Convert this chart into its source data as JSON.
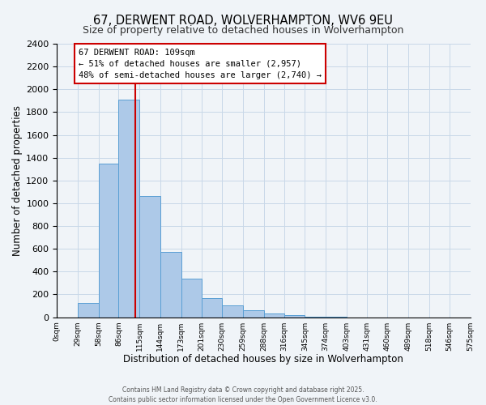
{
  "title": "67, DERWENT ROAD, WOLVERHAMPTON, WV6 9EU",
  "subtitle": "Size of property relative to detached houses in Wolverhampton",
  "xlabel": "Distribution of detached houses by size in Wolverhampton",
  "ylabel": "Number of detached properties",
  "bin_edges": [
    0,
    29,
    58,
    86,
    115,
    144,
    173,
    201,
    230,
    259,
    288,
    316,
    345,
    374,
    403,
    431,
    460,
    489,
    518,
    546,
    575
  ],
  "bar_heights": [
    0,
    125,
    1350,
    1910,
    1060,
    570,
    340,
    165,
    105,
    60,
    30,
    15,
    5,
    2,
    0,
    0,
    0,
    0,
    0,
    0
  ],
  "bar_color": "#adc9e8",
  "bar_edge_color": "#5a9fd4",
  "vline_x": 109,
  "vline_color": "#cc0000",
  "annotation_title": "67 DERWENT ROAD: 109sqm",
  "annotation_line1": "← 51% of detached houses are smaller (2,957)",
  "annotation_line2": "48% of semi-detached houses are larger (2,740) →",
  "annotation_box_color": "#ffffff",
  "annotation_box_edge": "#cc0000",
  "ylim": [
    0,
    2400
  ],
  "xlim": [
    0,
    575
  ],
  "tick_labels": [
    "0sqm",
    "29sqm",
    "58sqm",
    "86sqm",
    "115sqm",
    "144sqm",
    "173sqm",
    "201sqm",
    "230sqm",
    "259sqm",
    "288sqm",
    "316sqm",
    "345sqm",
    "374sqm",
    "403sqm",
    "431sqm",
    "460sqm",
    "489sqm",
    "518sqm",
    "546sqm",
    "575sqm"
  ],
  "footer1": "Contains HM Land Registry data © Crown copyright and database right 2025.",
  "footer2": "Contains public sector information licensed under the Open Government Licence v3.0.",
  "background_color": "#f0f4f8",
  "grid_color": "#c8d8e8"
}
